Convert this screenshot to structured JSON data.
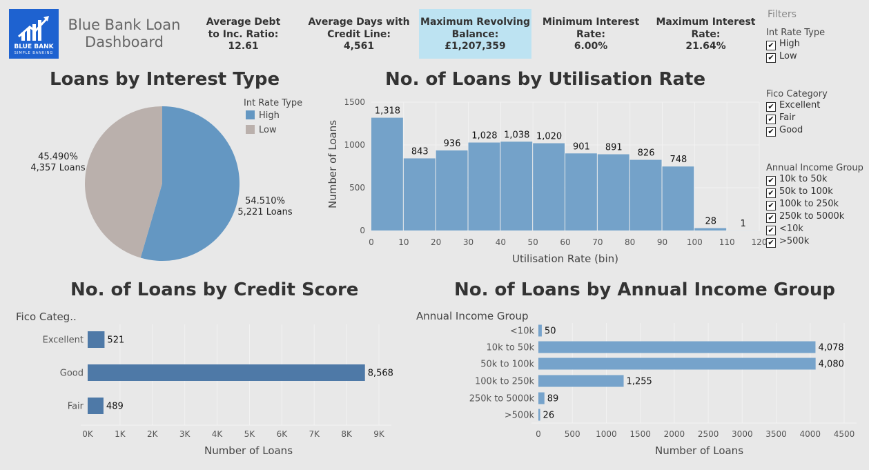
{
  "header": {
    "logo_name": "BLUE BANK",
    "logo_tagline": "SIMPLE BANKING",
    "title": "Blue Bank Loan Dashboard"
  },
  "kpis": [
    {
      "label": "Average Debt to Inc. Ratio:",
      "value": "12.61",
      "highlight": false
    },
    {
      "label": "Average Days with Credit Line:",
      "value": "4,561",
      "highlight": false
    },
    {
      "label": "Maximum Revolving Balance:",
      "value": "£1,207,359",
      "highlight": true
    },
    {
      "label": "Minimum Interest Rate:",
      "value": "6.00%",
      "highlight": false
    },
    {
      "label": "Maximum Interest Rate:",
      "value": "21.64%",
      "highlight": false
    }
  ],
  "filters": {
    "title": "Filters",
    "groups": [
      {
        "title": "Int Rate Type",
        "items": [
          {
            "label": "High",
            "checked": true
          },
          {
            "label": "Low",
            "checked": true
          }
        ]
      },
      {
        "title": "Fico Category",
        "items": [
          {
            "label": "Excellent",
            "checked": true
          },
          {
            "label": "Fair",
            "checked": true
          },
          {
            "label": "Good",
            "checked": true
          }
        ]
      },
      {
        "title": "Annual Income Group",
        "items": [
          {
            "label": "10k to 50k",
            "checked": true
          },
          {
            "label": "50k to 100k",
            "checked": true
          },
          {
            "label": "100k to 250k",
            "checked": true
          },
          {
            "label": "250k to 5000k",
            "checked": true
          },
          {
            "label": "<10k",
            "checked": true
          },
          {
            "label": ">500k",
            "checked": true
          }
        ]
      }
    ]
  },
  "colors": {
    "high": "#6497c2",
    "low": "#bab0ac",
    "histogram": "#74a2c9",
    "credit_bar": "#4e79a7",
    "income_bar": "#76a3cb",
    "kpi_highlight": "#bde3f2",
    "logo_bg": "#1e62d0"
  },
  "chart_data": [
    {
      "type": "pie",
      "title": "Loans by Interest Type",
      "legend_title": "Int Rate Type",
      "legend_position": "top-right",
      "slices": [
        {
          "name": "High",
          "percent": 54.51,
          "percent_label": "54.510%",
          "count_label": "5,221 Loans",
          "value": 5221
        },
        {
          "name": "Low",
          "percent": 45.49,
          "percent_label": "45.490%",
          "count_label": "4,357 Loans",
          "value": 4357
        }
      ]
    },
    {
      "type": "bar",
      "title": "No. of Loans by Utilisation Rate",
      "xlabel": "Utilisation Rate (bin)",
      "ylabel": "Number of Loans",
      "bin_starts": [
        0,
        10,
        20,
        30,
        40,
        50,
        60,
        70,
        80,
        90,
        100,
        110
      ],
      "values": [
        1318,
        843,
        936,
        1028,
        1038,
        1020,
        901,
        891,
        826,
        748,
        28,
        1
      ],
      "value_labels": [
        "1,318",
        "843",
        "936",
        "1,028",
        "1,038",
        "1,020",
        "901",
        "891",
        "826",
        "748",
        "28",
        "1"
      ],
      "xticks": [
        "0",
        "10",
        "20",
        "30",
        "40",
        "50",
        "60",
        "70",
        "80",
        "90",
        "100",
        "110",
        "120"
      ],
      "yticks": [
        "0",
        "500",
        "1000",
        "1500"
      ],
      "xlim": [
        0,
        120
      ],
      "ylim": [
        0,
        1500
      ],
      "grid": true
    },
    {
      "type": "bar",
      "orientation": "horizontal",
      "title": "No. of Loans by Credit Score",
      "category_header": "Fico Categ..",
      "xlabel": "Number of Loans",
      "categories": [
        "Excellent",
        "Good",
        "Fair"
      ],
      "values": [
        521,
        8568,
        489
      ],
      "value_labels": [
        "521",
        "8,568",
        "489"
      ],
      "xticks": [
        "0K",
        "1K",
        "2K",
        "3K",
        "4K",
        "5K",
        "6K",
        "7K",
        "8K",
        "9K"
      ],
      "xlim": [
        0,
        9000
      ],
      "grid": true
    },
    {
      "type": "bar",
      "orientation": "horizontal",
      "title": "No. of Loans by Annual Income Group",
      "category_header": "Annual Income Group",
      "xlabel": "Number of Loans",
      "categories": [
        "<10k",
        "10k to 50k",
        "50k to 100k",
        "100k to 250k",
        "250k to 5000k",
        ">500k"
      ],
      "values": [
        50,
        4078,
        4080,
        1255,
        89,
        26
      ],
      "value_labels": [
        "50",
        "4,078",
        "4,080",
        "1,255",
        "89",
        "26"
      ],
      "xticks": [
        "0",
        "500",
        "1000",
        "1500",
        "2000",
        "2500",
        "3000",
        "3500",
        "4000",
        "4500"
      ],
      "xlim": [
        0,
        4500
      ],
      "grid": true
    }
  ]
}
